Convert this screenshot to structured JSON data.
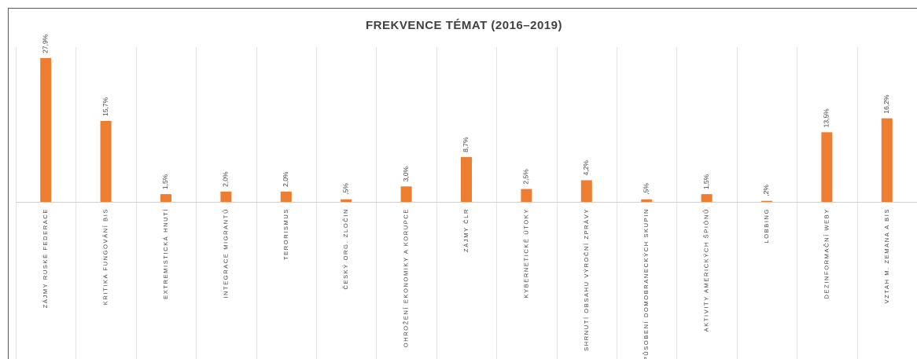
{
  "chart_data": {
    "type": "bar",
    "title": "FREKVENCE TÉMAT (2016–2019)",
    "categories": [
      "ZÁJMY RUSKÉ FEDERACE",
      "KRITIKA FUNGOVÁNÍ BIS",
      "EXTREMISTICKÁ HNUTÍ",
      "INTEGRACE MIGRANTŮ",
      "TERORISMUS",
      "ČESKÝ ORG. ZLOČIN",
      "OHROŽENÍ EKONOMIKY A KORUPCE",
      "ZÁJMY ČLR",
      "KYBERNETICKÉ ÚTOKY",
      "SHRNUTÍ OBSAHU VÝROČNÍ ZPRÁVY",
      "PŮSOBENÍ DOMOBRANECKÝCH SKUPIN",
      "AKTIVITY AMERICKÝCH ŠPIÓNŮ",
      "LOBBING",
      "DEZINFORMAČNÍ WEBY",
      "VZTAH M. ZEMANA A BIS"
    ],
    "values": [
      27.9,
      15.7,
      1.5,
      2.0,
      2.0,
      0.5,
      3.0,
      8.7,
      2.5,
      4.2,
      0.5,
      1.5,
      0.2,
      13.5,
      16.2
    ],
    "value_labels": [
      "27,9%",
      "15,7%",
      "1,5%",
      "2,0%",
      "2,0%",
      ",5%",
      "3,0%",
      "8,7%",
      "2,5%",
      "4,2%",
      ",5%",
      "1,5%",
      ",2%",
      "13,5%",
      "16,2%"
    ],
    "color": "#ed7d31",
    "ylim": [
      0,
      30
    ]
  }
}
